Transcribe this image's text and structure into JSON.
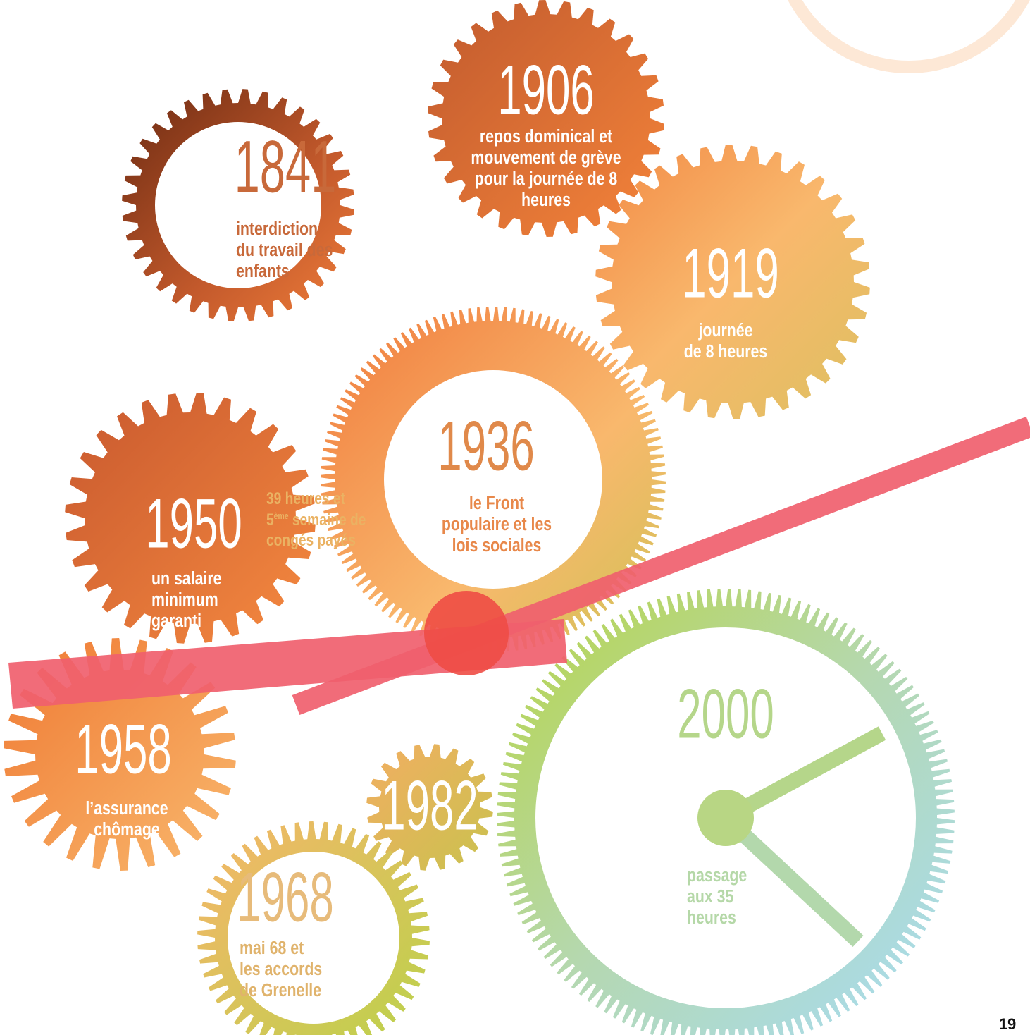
{
  "gears": [
    {
      "year": "1841",
      "lines": [
        "interdiction",
        "du travail des",
        "enfants"
      ]
    },
    {
      "year": "1906",
      "lines": [
        "repos dominical et",
        "mouvement de grève",
        "pour la journée de 8",
        "heures"
      ]
    },
    {
      "year": "1919",
      "lines": [
        "journée",
        "de 8 heures"
      ]
    },
    {
      "year": "1936",
      "lines": [
        "le Front",
        "populaire et les",
        "lois sociales"
      ]
    },
    {
      "year": "1950",
      "lines": [
        "un salaire",
        "minimum",
        "garanti"
      ]
    },
    {
      "year": "1958",
      "lines": [
        "l’assurance",
        "chômage"
      ]
    },
    {
      "year": "1968",
      "lines": [
        "mai 68 et",
        "les accords",
        "de Grenelle"
      ]
    },
    {
      "year": "1982",
      "lines": []
    },
    {
      "year": "2000",
      "lines": [
        "passage",
        "aux 35",
        "heures"
      ]
    }
  ],
  "note": {
    "line1": "39 heures et",
    "ordinal": "5",
    "ordinal_suffix": "ème",
    "line2_rest": " semaine de",
    "line3": "congés payés"
  },
  "page_number": "19"
}
